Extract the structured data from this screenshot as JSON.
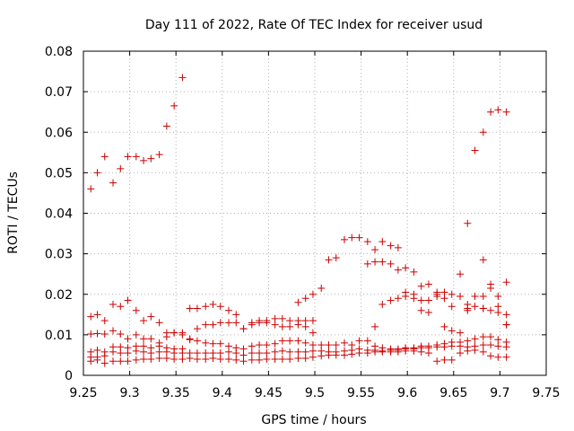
{
  "chart_data": {
    "type": "scatter",
    "title": "Day 111 of 2022, Rate Of TEC Index for receiver usud",
    "xlabel": "GPS time / hours",
    "ylabel": "ROTI / TECUs",
    "xlim": [
      9.25,
      9.75
    ],
    "ylim": [
      0,
      0.08
    ],
    "xticks": [
      "9.25",
      "9.3",
      "9.35",
      "9.4",
      "9.45",
      "9.5",
      "9.55",
      "9.6",
      "9.65",
      "9.7",
      "9.75"
    ],
    "yticks": [
      "0",
      "0.01",
      "0.02",
      "0.03",
      "0.04",
      "0.05",
      "0.06",
      "0.07",
      "0.08"
    ],
    "grid": true,
    "marker": "plus",
    "colors": {
      "marker": "#cc0000"
    },
    "points": [
      [
        9.258,
        0.046
      ],
      [
        9.265,
        0.05
      ],
      [
        9.273,
        0.054
      ],
      [
        9.282,
        0.0475
      ],
      [
        9.29,
        0.051
      ],
      [
        9.298,
        0.054
      ],
      [
        9.307,
        0.054
      ],
      [
        9.315,
        0.053
      ],
      [
        9.323,
        0.0535
      ],
      [
        9.332,
        0.0545
      ],
      [
        9.34,
        0.0615
      ],
      [
        9.348,
        0.0665
      ],
      [
        9.357,
        0.0735
      ],
      [
        9.258,
        0.0145
      ],
      [
        9.265,
        0.015
      ],
      [
        9.273,
        0.0135
      ],
      [
        9.282,
        0.0175
      ],
      [
        9.29,
        0.017
      ],
      [
        9.298,
        0.0185
      ],
      [
        9.307,
        0.016
      ],
      [
        9.315,
        0.0135
      ],
      [
        9.323,
        0.0145
      ],
      [
        9.332,
        0.013
      ],
      [
        9.34,
        0.0105
      ],
      [
        9.348,
        0.0105
      ],
      [
        9.357,
        0.0105
      ],
      [
        9.365,
        0.0165
      ],
      [
        9.373,
        0.0165
      ],
      [
        9.382,
        0.017
      ],
      [
        9.39,
        0.0175
      ],
      [
        9.398,
        0.017
      ],
      [
        9.407,
        0.016
      ],
      [
        9.415,
        0.015
      ],
      [
        9.423,
        0.0115
      ],
      [
        9.432,
        0.013
      ],
      [
        9.44,
        0.013
      ],
      [
        9.448,
        0.0135
      ],
      [
        9.457,
        0.014
      ],
      [
        9.465,
        0.014
      ],
      [
        9.473,
        0.0135
      ],
      [
        9.482,
        0.0135
      ],
      [
        9.49,
        0.0135
      ],
      [
        9.498,
        0.0135
      ],
      [
        9.258,
        0.0102
      ],
      [
        9.265,
        0.0103
      ],
      [
        9.273,
        0.0102
      ],
      [
        9.282,
        0.011
      ],
      [
        9.29,
        0.0102
      ],
      [
        9.298,
        0.009
      ],
      [
        9.307,
        0.01
      ],
      [
        9.315,
        0.009
      ],
      [
        9.323,
        0.009
      ],
      [
        9.332,
        0.008
      ],
      [
        9.34,
        0.0095
      ],
      [
        9.348,
        0.0105
      ],
      [
        9.357,
        0.01
      ],
      [
        9.365,
        0.009
      ],
      [
        9.373,
        0.0115
      ],
      [
        9.382,
        0.0125
      ],
      [
        9.39,
        0.0125
      ],
      [
        9.398,
        0.013
      ],
      [
        9.407,
        0.013
      ],
      [
        9.415,
        0.013
      ],
      [
        9.423,
        0.0115
      ],
      [
        9.432,
        0.0125
      ],
      [
        9.44,
        0.0135
      ],
      [
        9.448,
        0.013
      ],
      [
        9.457,
        0.0125
      ],
      [
        9.465,
        0.012
      ],
      [
        9.473,
        0.012
      ],
      [
        9.482,
        0.0125
      ],
      [
        9.49,
        0.012
      ],
      [
        9.498,
        0.0105
      ],
      [
        9.258,
        0.0058
      ],
      [
        9.265,
        0.0062
      ],
      [
        9.273,
        0.0058
      ],
      [
        9.282,
        0.007
      ],
      [
        9.29,
        0.007
      ],
      [
        9.298,
        0.0068
      ],
      [
        9.307,
        0.0072
      ],
      [
        9.315,
        0.0072
      ],
      [
        9.323,
        0.0068
      ],
      [
        9.332,
        0.0072
      ],
      [
        9.34,
        0.0068
      ],
      [
        9.348,
        0.0065
      ],
      [
        9.357,
        0.0065
      ],
      [
        9.365,
        0.0088
      ],
      [
        9.373,
        0.0085
      ],
      [
        9.382,
        0.008
      ],
      [
        9.39,
        0.0078
      ],
      [
        9.398,
        0.0078
      ],
      [
        9.407,
        0.0072
      ],
      [
        9.415,
        0.0068
      ],
      [
        9.423,
        0.0065
      ],
      [
        9.432,
        0.0072
      ],
      [
        9.44,
        0.0075
      ],
      [
        9.448,
        0.0075
      ],
      [
        9.457,
        0.0078
      ],
      [
        9.465,
        0.0085
      ],
      [
        9.473,
        0.0085
      ],
      [
        9.482,
        0.0085
      ],
      [
        9.49,
        0.008
      ],
      [
        9.498,
        0.0075
      ],
      [
        9.507,
        0.0075
      ],
      [
        9.515,
        0.0075
      ],
      [
        9.523,
        0.0075
      ],
      [
        9.532,
        0.008
      ],
      [
        9.54,
        0.0075
      ],
      [
        9.548,
        0.0085
      ],
      [
        9.557,
        0.0085
      ],
      [
        9.565,
        0.0072
      ],
      [
        9.573,
        0.0068
      ],
      [
        9.582,
        0.0065
      ],
      [
        9.59,
        0.0065
      ],
      [
        9.598,
        0.0068
      ],
      [
        9.607,
        0.0068
      ],
      [
        9.615,
        0.0072
      ],
      [
        9.623,
        0.0072
      ],
      [
        9.632,
        0.0075
      ],
      [
        9.64,
        0.0078
      ],
      [
        9.648,
        0.0082
      ],
      [
        9.657,
        0.0082
      ],
      [
        9.665,
        0.0085
      ],
      [
        9.673,
        0.009
      ],
      [
        9.682,
        0.0095
      ],
      [
        9.69,
        0.0095
      ],
      [
        9.698,
        0.0088
      ],
      [
        9.707,
        0.0082
      ],
      [
        9.258,
        0.0045
      ],
      [
        9.265,
        0.0045
      ],
      [
        9.273,
        0.0048
      ],
      [
        9.282,
        0.0058
      ],
      [
        9.29,
        0.0055
      ],
      [
        9.298,
        0.0055
      ],
      [
        9.307,
        0.006
      ],
      [
        9.315,
        0.0058
      ],
      [
        9.323,
        0.0055
      ],
      [
        9.332,
        0.0058
      ],
      [
        9.34,
        0.0058
      ],
      [
        9.348,
        0.0055
      ],
      [
        9.357,
        0.0055
      ],
      [
        9.365,
        0.0055
      ],
      [
        9.373,
        0.0055
      ],
      [
        9.382,
        0.0055
      ],
      [
        9.39,
        0.0055
      ],
      [
        9.398,
        0.0055
      ],
      [
        9.407,
        0.0058
      ],
      [
        9.415,
        0.0055
      ],
      [
        9.423,
        0.005
      ],
      [
        9.432,
        0.0055
      ],
      [
        9.44,
        0.0055
      ],
      [
        9.448,
        0.0055
      ],
      [
        9.457,
        0.0058
      ],
      [
        9.465,
        0.006
      ],
      [
        9.473,
        0.0058
      ],
      [
        9.482,
        0.0058
      ],
      [
        9.49,
        0.0058
      ],
      [
        9.498,
        0.006
      ],
      [
        9.507,
        0.006
      ],
      [
        9.515,
        0.0058
      ],
      [
        9.523,
        0.0058
      ],
      [
        9.532,
        0.006
      ],
      [
        9.54,
        0.0062
      ],
      [
        9.548,
        0.0065
      ],
      [
        9.557,
        0.0062
      ],
      [
        9.565,
        0.0062
      ],
      [
        9.573,
        0.006
      ],
      [
        9.582,
        0.0062
      ],
      [
        9.59,
        0.0062
      ],
      [
        9.598,
        0.0065
      ],
      [
        9.607,
        0.0065
      ],
      [
        9.615,
        0.0068
      ],
      [
        9.623,
        0.0068
      ],
      [
        9.632,
        0.007
      ],
      [
        9.64,
        0.007
      ],
      [
        9.648,
        0.0072
      ],
      [
        9.657,
        0.0072
      ],
      [
        9.665,
        0.007
      ],
      [
        9.673,
        0.0072
      ],
      [
        9.682,
        0.0075
      ],
      [
        9.69,
        0.0075
      ],
      [
        9.698,
        0.0072
      ],
      [
        9.707,
        0.007
      ],
      [
        9.258,
        0.0035
      ],
      [
        9.265,
        0.0038
      ],
      [
        9.273,
        0.003
      ],
      [
        9.282,
        0.0035
      ],
      [
        9.29,
        0.0035
      ],
      [
        9.298,
        0.0035
      ],
      [
        9.307,
        0.0038
      ],
      [
        9.315,
        0.004
      ],
      [
        9.323,
        0.004
      ],
      [
        9.332,
        0.0042
      ],
      [
        9.34,
        0.0042
      ],
      [
        9.348,
        0.004
      ],
      [
        9.357,
        0.004
      ],
      [
        9.365,
        0.0042
      ],
      [
        9.373,
        0.004
      ],
      [
        9.382,
        0.004
      ],
      [
        9.39,
        0.0042
      ],
      [
        9.398,
        0.004
      ],
      [
        9.407,
        0.004
      ],
      [
        9.415,
        0.0038
      ],
      [
        9.423,
        0.0035
      ],
      [
        9.432,
        0.0038
      ],
      [
        9.44,
        0.0038
      ],
      [
        9.448,
        0.004
      ],
      [
        9.457,
        0.004
      ],
      [
        9.465,
        0.004
      ],
      [
        9.473,
        0.004
      ],
      [
        9.482,
        0.0042
      ],
      [
        9.49,
        0.0042
      ],
      [
        9.498,
        0.0045
      ],
      [
        9.507,
        0.0048
      ],
      [
        9.515,
        0.005
      ],
      [
        9.523,
        0.005
      ],
      [
        9.532,
        0.005
      ],
      [
        9.54,
        0.0052
      ],
      [
        9.548,
        0.0055
      ],
      [
        9.557,
        0.0055
      ],
      [
        9.565,
        0.0058
      ],
      [
        9.573,
        0.0058
      ],
      [
        9.582,
        0.0058
      ],
      [
        9.59,
        0.0058
      ],
      [
        9.598,
        0.006
      ],
      [
        9.607,
        0.006
      ],
      [
        9.615,
        0.0058
      ],
      [
        9.623,
        0.0055
      ],
      [
        9.632,
        0.0035
      ],
      [
        9.64,
        0.0038
      ],
      [
        9.648,
        0.0038
      ],
      [
        9.657,
        0.0055
      ],
      [
        9.665,
        0.006
      ],
      [
        9.673,
        0.0062
      ],
      [
        9.682,
        0.0058
      ],
      [
        9.69,
        0.0048
      ],
      [
        9.698,
        0.0045
      ],
      [
        9.707,
        0.0045
      ],
      [
        9.482,
        0.018
      ],
      [
        9.49,
        0.019
      ],
      [
        9.498,
        0.02
      ],
      [
        9.507,
        0.0215
      ],
      [
        9.515,
        0.0285
      ],
      [
        9.523,
        0.029
      ],
      [
        9.532,
        0.0335
      ],
      [
        9.54,
        0.034
      ],
      [
        9.548,
        0.034
      ],
      [
        9.557,
        0.033
      ],
      [
        9.565,
        0.031
      ],
      [
        9.573,
        0.033
      ],
      [
        9.582,
        0.032
      ],
      [
        9.59,
        0.0315
      ],
      [
        9.598,
        0.0265
      ],
      [
        9.607,
        0.0255
      ],
      [
        9.615,
        0.022
      ],
      [
        9.623,
        0.0225
      ],
      [
        9.632,
        0.0205
      ],
      [
        9.64,
        0.0205
      ],
      [
        9.648,
        0.02
      ],
      [
        9.657,
        0.0195
      ],
      [
        9.665,
        0.0175
      ],
      [
        9.673,
        0.0195
      ],
      [
        9.682,
        0.0195
      ],
      [
        9.69,
        0.0225
      ],
      [
        9.698,
        0.0195
      ],
      [
        9.707,
        0.023
      ],
      [
        9.557,
        0.0275
      ],
      [
        9.565,
        0.028
      ],
      [
        9.573,
        0.028
      ],
      [
        9.582,
        0.0275
      ],
      [
        9.59,
        0.026
      ],
      [
        9.598,
        0.0205
      ],
      [
        9.607,
        0.02
      ],
      [
        9.615,
        0.016
      ],
      [
        9.623,
        0.0155
      ],
      [
        9.632,
        0.02
      ],
      [
        9.64,
        0.019
      ],
      [
        9.648,
        0.017
      ],
      [
        9.657,
        0.025
      ],
      [
        9.665,
        0.0165
      ],
      [
        9.673,
        0.017
      ],
      [
        9.682,
        0.0165
      ],
      [
        9.69,
        0.016
      ],
      [
        9.698,
        0.017
      ],
      [
        9.707,
        0.0125
      ],
      [
        9.565,
        0.012
      ],
      [
        9.573,
        0.0175
      ],
      [
        9.582,
        0.0185
      ],
      [
        9.59,
        0.019
      ],
      [
        9.598,
        0.0195
      ],
      [
        9.607,
        0.019
      ],
      [
        9.615,
        0.0185
      ],
      [
        9.623,
        0.0185
      ],
      [
        9.632,
        0.0195
      ],
      [
        9.64,
        0.012
      ],
      [
        9.648,
        0.011
      ],
      [
        9.657,
        0.0105
      ],
      [
        9.665,
        0.016
      ],
      [
        9.673,
        0.0195
      ],
      [
        9.682,
        0.0165
      ],
      [
        9.69,
        0.0215
      ],
      [
        9.698,
        0.0155
      ],
      [
        9.707,
        0.015
      ],
      [
        9.665,
        0.0375
      ],
      [
        9.673,
        0.0555
      ],
      [
        9.682,
        0.06
      ],
      [
        9.682,
        0.0285
      ],
      [
        9.69,
        0.065
      ],
      [
        9.698,
        0.0655
      ],
      [
        9.707,
        0.065
      ],
      [
        9.707,
        0.0125
      ]
    ]
  }
}
